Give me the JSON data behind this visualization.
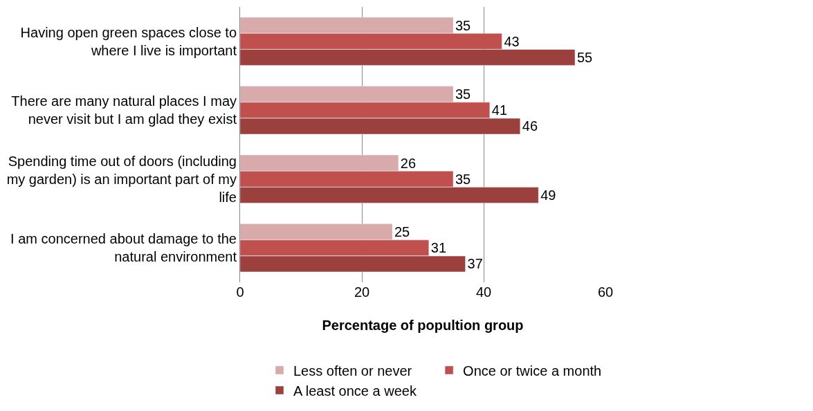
{
  "chart_data": {
    "type": "bar",
    "orientation": "horizontal",
    "xlabel": "Percentage of popultion group",
    "categories": [
      "Having open green spaces close to where I live is important",
      "There are many natural places I may never visit but I am glad they exist",
      "Spending time out of doors (including my garden) is an important part of my life",
      "I am concerned about damage to the natural environment"
    ],
    "series": [
      {
        "name": "Less often or never",
        "color": "#d9aaaa",
        "values": [
          35,
          35,
          26,
          25
        ]
      },
      {
        "name": "Once or twice a month",
        "color": "#c0504d",
        "values": [
          43,
          41,
          35,
          31
        ]
      },
      {
        "name": "A least once a week",
        "color": "#9c403e",
        "values": [
          55,
          46,
          49,
          37
        ]
      }
    ],
    "xlim": [
      0,
      60
    ],
    "xticks": [
      0,
      20,
      40,
      60
    ],
    "grid": "x",
    "legend": "bottom right",
    "data_labels": true
  }
}
